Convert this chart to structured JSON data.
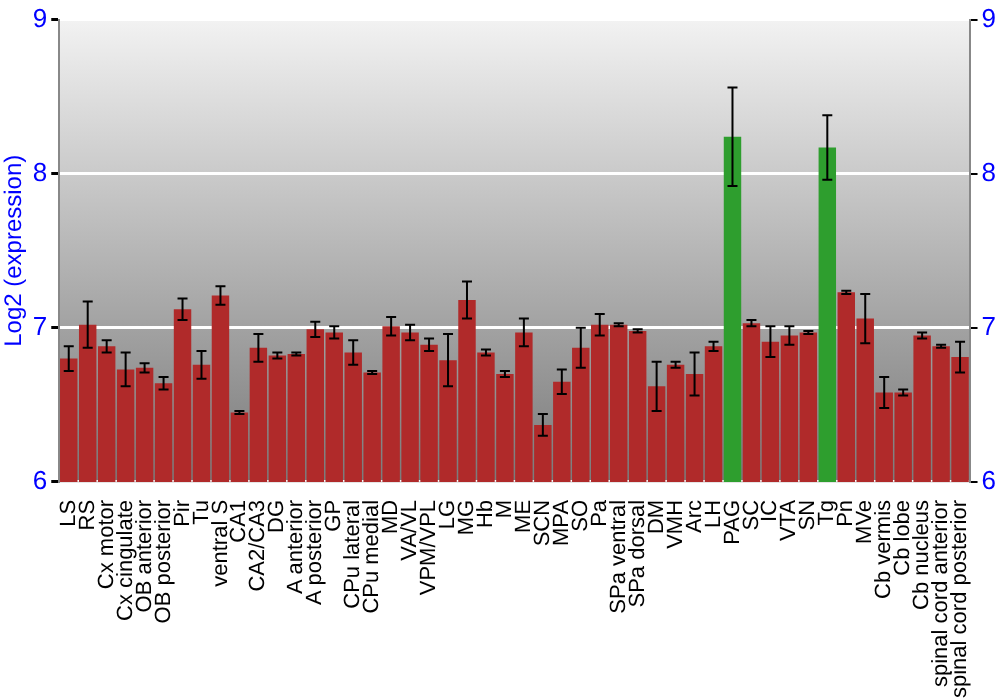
{
  "chart_data": {
    "type": "bar",
    "ylabel": "Log2 (expression)",
    "categories": [
      "LS",
      "RS",
      "Cx motor",
      "Cx cingulate",
      "OB anterior",
      "OB posterior",
      "Pir",
      "Tu",
      "ventral S",
      "CA1",
      "CA2/CA3",
      "DG",
      "A anterior",
      "A posterior",
      "GP",
      "CPu lateral",
      "CPu medial",
      "MD",
      "VA/VL",
      "VPM/VPL",
      "LG",
      "MG",
      "Hb",
      "M",
      "ME",
      "SCN",
      "MPA",
      "SO",
      "Pa",
      "SPa ventral",
      "SPa dorsal",
      "DM",
      "VMH",
      "Arc",
      "LH",
      "PAG",
      "SC",
      "IC",
      "VTA",
      "SN",
      "Tg",
      "Pn",
      "MVe",
      "Cb vermis",
      "Cb lobe",
      "Cb nucleus",
      "spinal cord anterior",
      "spinal cord posterior"
    ],
    "values": [
      6.8,
      7.02,
      6.88,
      6.73,
      6.74,
      6.64,
      7.12,
      6.76,
      7.21,
      6.45,
      6.87,
      6.82,
      6.83,
      6.99,
      6.97,
      6.84,
      6.71,
      7.01,
      6.97,
      6.89,
      6.79,
      7.18,
      6.84,
      6.7,
      6.97,
      6.37,
      6.65,
      6.87,
      7.02,
      7.02,
      6.98,
      6.62,
      6.76,
      6.7,
      6.88,
      8.24,
      7.03,
      6.91,
      6.95,
      6.97,
      8.17,
      7.23,
      7.06,
      6.58,
      6.58,
      6.95,
      6.88,
      6.81
    ],
    "errors": [
      0.08,
      0.15,
      0.04,
      0.11,
      0.03,
      0.04,
      0.07,
      0.09,
      0.06,
      0.01,
      0.09,
      0.02,
      0.01,
      0.05,
      0.04,
      0.08,
      0.01,
      0.06,
      0.05,
      0.04,
      0.17,
      0.12,
      0.02,
      0.02,
      0.09,
      0.07,
      0.08,
      0.13,
      0.07,
      0.01,
      0.01,
      0.16,
      0.02,
      0.14,
      0.03,
      0.32,
      0.02,
      0.1,
      0.06,
      0.01,
      0.21,
      0.01,
      0.16,
      0.1,
      0.02,
      0.02,
      0.01,
      0.1
    ],
    "colors": [
      "#b02a2a",
      "#b02a2a",
      "#b02a2a",
      "#b02a2a",
      "#b02a2a",
      "#b02a2a",
      "#b02a2a",
      "#b02a2a",
      "#b02a2a",
      "#b02a2a",
      "#b02a2a",
      "#b02a2a",
      "#b02a2a",
      "#b02a2a",
      "#b02a2a",
      "#b02a2a",
      "#b02a2a",
      "#b02a2a",
      "#b02a2a",
      "#b02a2a",
      "#b02a2a",
      "#b02a2a",
      "#b02a2a",
      "#b02a2a",
      "#b02a2a",
      "#b02a2a",
      "#b02a2a",
      "#b02a2a",
      "#b02a2a",
      "#b02a2a",
      "#b02a2a",
      "#b02a2a",
      "#b02a2a",
      "#b02a2a",
      "#b02a2a",
      "#2e9e2e",
      "#b02a2a",
      "#b02a2a",
      "#b02a2a",
      "#b02a2a",
      "#2e9e2e",
      "#b02a2a",
      "#b02a2a",
      "#b02a2a",
      "#b02a2a",
      "#b02a2a",
      "#b02a2a",
      "#b02a2a"
    ],
    "ylim": [
      6,
      9
    ],
    "yticks": [
      6,
      7,
      8,
      9
    ],
    "y2lim": [
      6,
      9
    ],
    "y2ticks": [
      6,
      7,
      8,
      9
    ],
    "grid": "y",
    "legend": false
  }
}
